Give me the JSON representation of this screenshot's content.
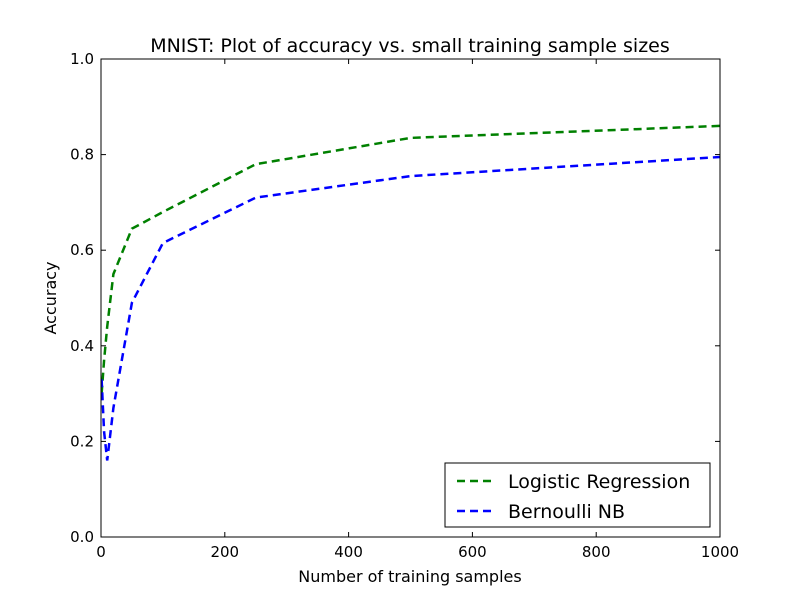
{
  "chart_data": {
    "type": "line",
    "title": "MNIST: Plot of accuracy vs. small training sample sizes",
    "xlabel": "Number of training samples",
    "ylabel": "Accuracy",
    "xlim": [
      0,
      1000
    ],
    "ylim": [
      0.0,
      1.0
    ],
    "xticks": [
      0,
      200,
      400,
      600,
      800,
      1000
    ],
    "xtick_labels": [
      "0",
      "200",
      "400",
      "600",
      "800",
      "1000"
    ],
    "yticks": [
      0.0,
      0.2,
      0.4,
      0.6,
      0.8,
      1.0
    ],
    "ytick_labels": [
      "0.0",
      "0.2",
      "0.4",
      "0.6",
      "0.8",
      "1.0"
    ],
    "grid": false,
    "legend_position": "lower-right",
    "series": [
      {
        "name": "Logistic Regression",
        "color": "#008000",
        "linestyle": "dashed",
        "x": [
          1,
          5,
          10,
          20,
          50,
          100,
          250,
          500,
          1000
        ],
        "y": [
          0.3,
          0.37,
          0.44,
          0.55,
          0.645,
          0.68,
          0.78,
          0.835,
          0.86
        ]
      },
      {
        "name": "Bernoulli NB",
        "color": "#0000ff",
        "linestyle": "dashed",
        "x": [
          1,
          5,
          10,
          20,
          50,
          100,
          250,
          500,
          1000
        ],
        "y": [
          0.33,
          0.22,
          0.16,
          0.27,
          0.49,
          0.615,
          0.71,
          0.755,
          0.795
        ]
      }
    ]
  }
}
